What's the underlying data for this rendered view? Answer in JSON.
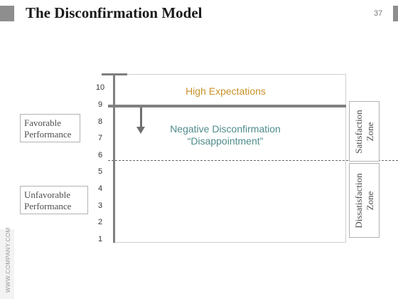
{
  "header": {
    "title": "The Disconfirmation Model",
    "page_number": "37"
  },
  "diagram": {
    "y_ticks": [
      "10",
      "9",
      "8",
      "7",
      "6",
      "5",
      "4",
      "3",
      "2",
      "1"
    ],
    "high_expectations": "High Expectations",
    "negative_disconfirmation": [
      "Negative Disconfirmation",
      "“Disappointment”"
    ],
    "left_labels": {
      "favorable": [
        "Favorable",
        "Performance"
      ],
      "unfavorable": [
        "Unfavorable",
        "Performance"
      ]
    },
    "right_zones": {
      "satisfaction": [
        "Satisfaction",
        "Zone"
      ],
      "dissatisfaction": [
        "Dissatisfaction",
        "Zone"
      ]
    },
    "colors": {
      "high_expectations": "#c8922a",
      "negative_disconfirmation": "#4f8b8b",
      "axis": "#7f7f7f"
    }
  },
  "footer": {
    "watermark": "WWW.COMPANY.COM"
  }
}
